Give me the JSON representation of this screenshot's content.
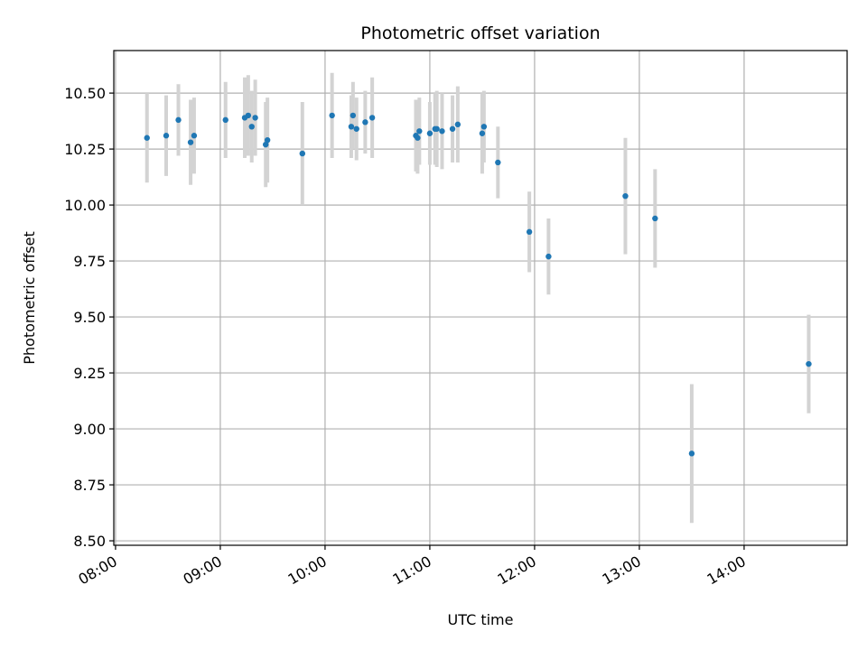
{
  "chart_data": {
    "type": "scatter",
    "title": "Photometric offset variation",
    "xlabel": "UTC time",
    "ylabel": "Photometric offset",
    "x_axis_kind": "time",
    "xlim": [
      "07:59",
      "14:59"
    ],
    "ylim": [
      8.48,
      10.69
    ],
    "x_ticks": [
      "08:00",
      "09:00",
      "10:00",
      "11:00",
      "12:00",
      "13:00",
      "14:00"
    ],
    "y_ticks": [
      8.5,
      8.75,
      9.0,
      9.25,
      9.5,
      9.75,
      10.0,
      10.25,
      10.5
    ],
    "grid": true,
    "legend": "none",
    "colors": {
      "point": "#1f77b4",
      "error_bar": "#d3d3d3",
      "grid": "#b0b0b0"
    },
    "points": [
      {
        "x": "08:18",
        "y": 10.3,
        "err": 0.2
      },
      {
        "x": "08:29",
        "y": 10.31,
        "err": 0.18
      },
      {
        "x": "08:36",
        "y": 10.38,
        "err": 0.16
      },
      {
        "x": "08:43",
        "y": 10.28,
        "err": 0.19
      },
      {
        "x": "08:45",
        "y": 10.31,
        "err": 0.17
      },
      {
        "x": "09:03",
        "y": 10.38,
        "err": 0.17
      },
      {
        "x": "09:14",
        "y": 10.39,
        "err": 0.18
      },
      {
        "x": "09:16",
        "y": 10.4,
        "err": 0.18
      },
      {
        "x": "09:18",
        "y": 10.35,
        "err": 0.16
      },
      {
        "x": "09:20",
        "y": 10.39,
        "err": 0.17
      },
      {
        "x": "09:26",
        "y": 10.27,
        "err": 0.19
      },
      {
        "x": "09:27",
        "y": 10.29,
        "err": 0.19
      },
      {
        "x": "09:47",
        "y": 10.23,
        "err": 0.23
      },
      {
        "x": "10:04",
        "y": 10.4,
        "err": 0.19
      },
      {
        "x": "10:15",
        "y": 10.35,
        "err": 0.14
      },
      {
        "x": "10:16",
        "y": 10.4,
        "err": 0.15
      },
      {
        "x": "10:18",
        "y": 10.34,
        "err": 0.14
      },
      {
        "x": "10:23",
        "y": 10.37,
        "err": 0.14
      },
      {
        "x": "10:27",
        "y": 10.39,
        "err": 0.18
      },
      {
        "x": "10:52",
        "y": 10.31,
        "err": 0.16
      },
      {
        "x": "10:53",
        "y": 10.3,
        "err": 0.16
      },
      {
        "x": "10:54",
        "y": 10.33,
        "err": 0.15
      },
      {
        "x": "11:00",
        "y": 10.32,
        "err": 0.14
      },
      {
        "x": "11:03",
        "y": 10.34,
        "err": 0.16
      },
      {
        "x": "11:04",
        "y": 10.34,
        "err": 0.17
      },
      {
        "x": "11:07",
        "y": 10.33,
        "err": 0.17
      },
      {
        "x": "11:13",
        "y": 10.34,
        "err": 0.15
      },
      {
        "x": "11:16",
        "y": 10.36,
        "err": 0.17
      },
      {
        "x": "11:30",
        "y": 10.32,
        "err": 0.18
      },
      {
        "x": "11:31",
        "y": 10.35,
        "err": 0.16
      },
      {
        "x": "11:39",
        "y": 10.19,
        "err": 0.16
      },
      {
        "x": "11:57",
        "y": 9.88,
        "err": 0.18
      },
      {
        "x": "12:08",
        "y": 9.77,
        "err": 0.17
      },
      {
        "x": "12:52",
        "y": 10.04,
        "err": 0.26
      },
      {
        "x": "13:09",
        "y": 9.94,
        "err": 0.22
      },
      {
        "x": "13:30",
        "y": 8.89,
        "err": 0.31
      },
      {
        "x": "14:37",
        "y": 9.29,
        "err": 0.22
      }
    ]
  }
}
